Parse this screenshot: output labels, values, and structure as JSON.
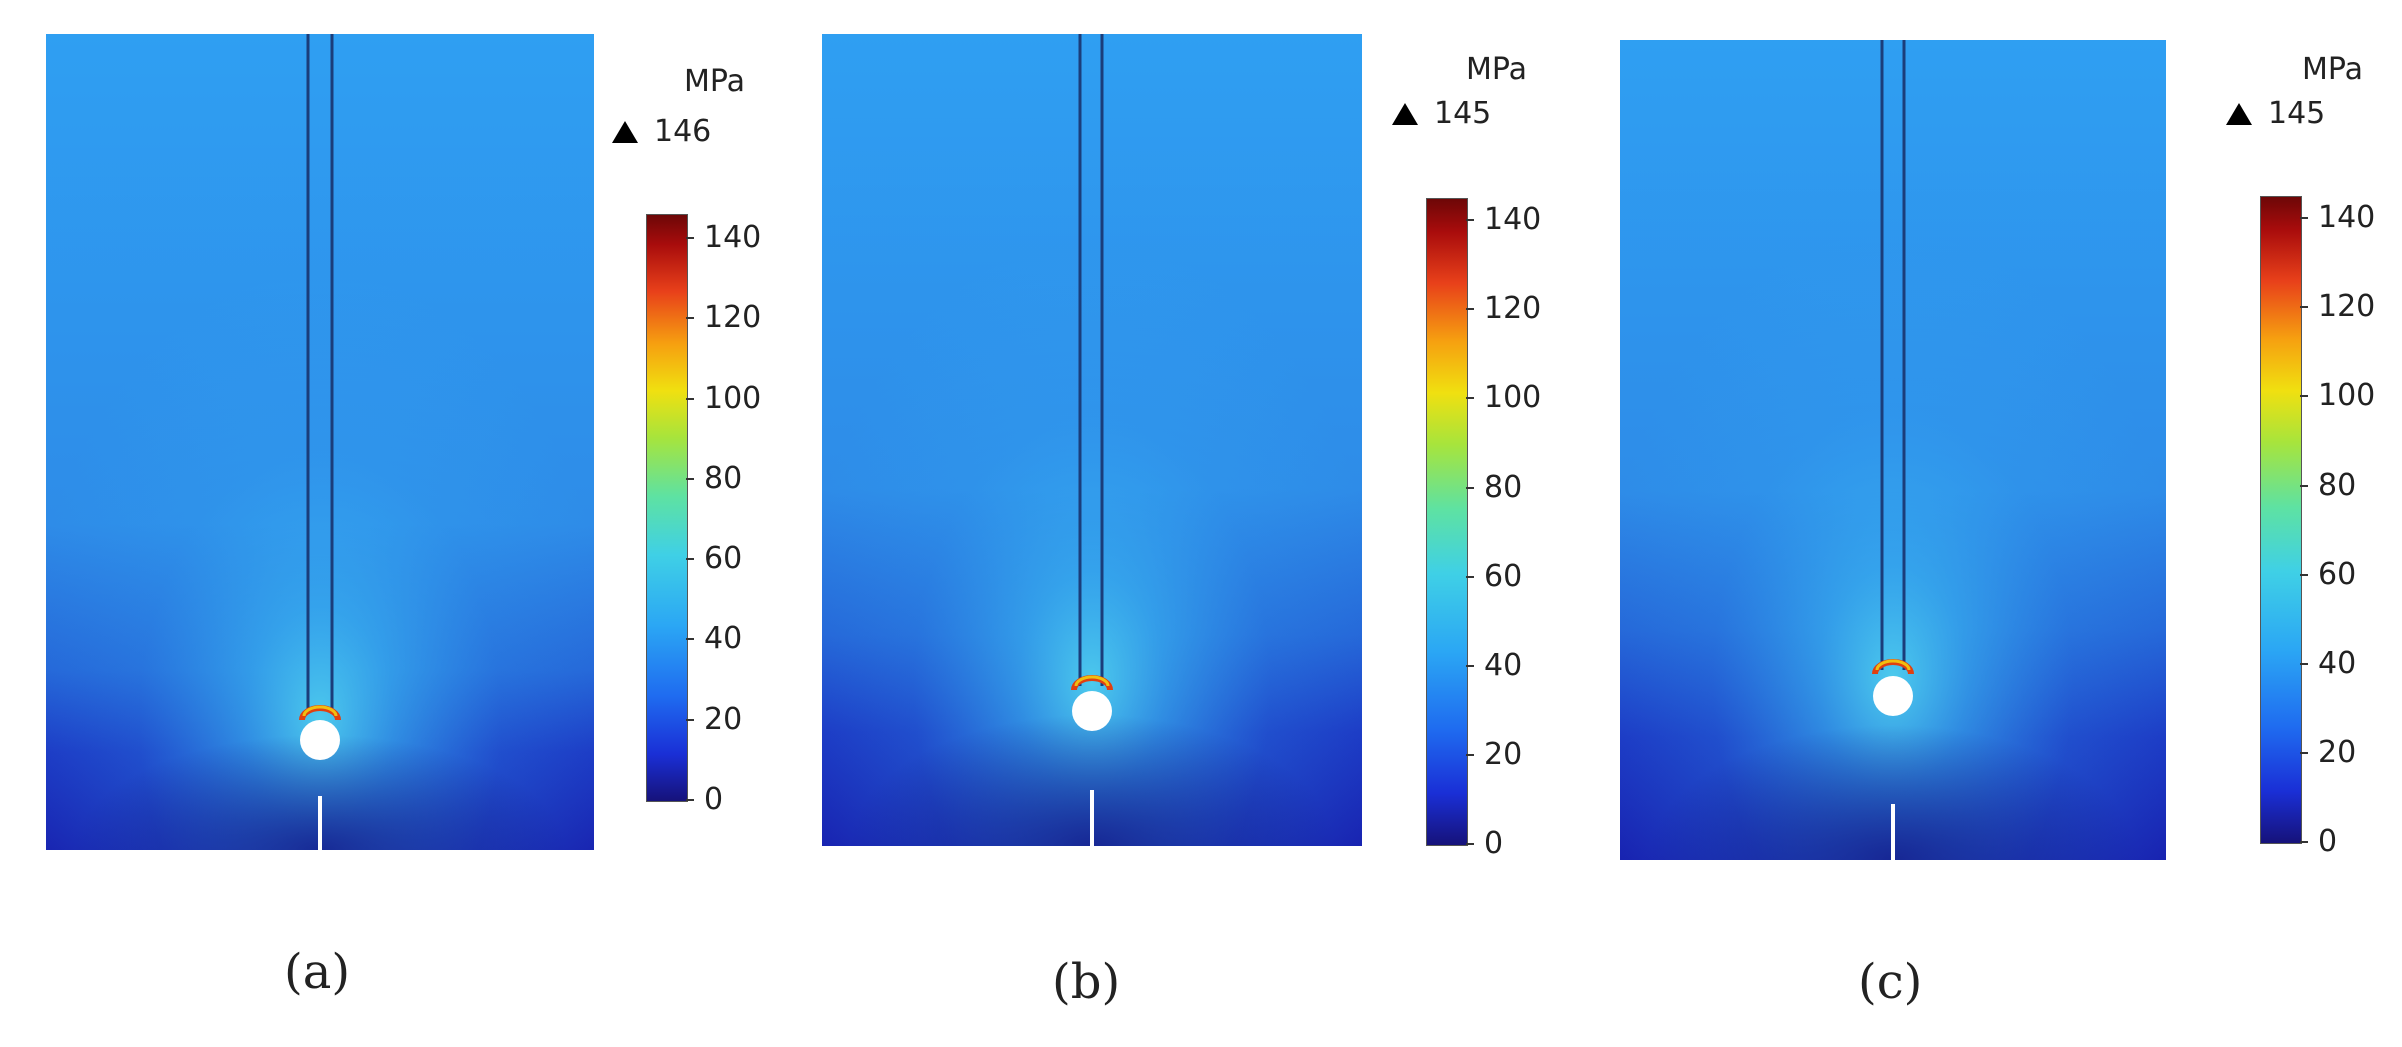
{
  "chart_data": [
    {
      "type": "heatmap",
      "caption": "(a)",
      "unit": "MPa",
      "max_label": "146",
      "colorbar": {
        "range": [
          0,
          146
        ],
        "ticks": [
          0,
          20,
          40,
          60,
          80,
          100,
          120,
          140
        ]
      },
      "colormap": "rainbow"
    },
    {
      "type": "heatmap",
      "caption": "(b)",
      "unit": "MPa",
      "max_label": "145",
      "colorbar": {
        "range": [
          0,
          145
        ],
        "ticks": [
          0,
          20,
          40,
          60,
          80,
          100,
          120,
          140
        ]
      },
      "colormap": "rainbow"
    },
    {
      "type": "heatmap",
      "caption": "(c)",
      "unit": "MPa",
      "max_label": "145",
      "colorbar": {
        "range": [
          0,
          145
        ],
        "ticks": [
          0,
          20,
          40,
          60,
          80,
          100,
          120,
          140
        ]
      },
      "colormap": "rainbow"
    }
  ],
  "colors": {
    "field_top": "#2f9ff0",
    "field_bottom": "#1a22b8",
    "hot": "#d23a10"
  }
}
